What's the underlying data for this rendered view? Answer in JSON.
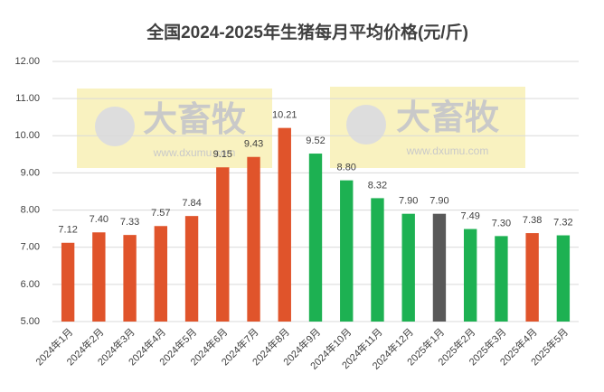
{
  "chart_data": {
    "type": "bar",
    "title": "全国2024-2025年生猪每月平均价格(元/斤)",
    "categories": [
      "2024年1月",
      "2024年2月",
      "2024年3月",
      "2024年4月",
      "2024年5月",
      "2024年6月",
      "2024年7月",
      "2024年8月",
      "2024年9月",
      "2024年10月",
      "2024年11月",
      "2024年12月",
      "2025年1月",
      "2025年2月",
      "2025年3月",
      "2025年4月",
      "2025年5月"
    ],
    "values": [
      7.12,
      7.4,
      7.33,
      7.57,
      7.84,
      9.15,
      9.43,
      10.21,
      9.52,
      8.8,
      8.32,
      7.9,
      7.9,
      7.49,
      7.3,
      7.38,
      7.32
    ],
    "value_labels": [
      "7.12",
      "7.40",
      "7.33",
      "7.57",
      "7.84",
      "9.15",
      "9.43",
      "10.21",
      "9.52",
      "8.80",
      "8.32",
      "7.90",
      "7.90",
      "7.49",
      "7.30",
      "7.38",
      "7.32"
    ],
    "colors": [
      "#e0542b",
      "#e0542b",
      "#e0542b",
      "#e0542b",
      "#e0542b",
      "#e0542b",
      "#e0542b",
      "#e0542b",
      "#1db152",
      "#1db152",
      "#1db152",
      "#1db152",
      "#595959",
      "#1db152",
      "#1db152",
      "#e0542b",
      "#1db152"
    ],
    "ylim": [
      5,
      12
    ],
    "yticks": [
      {
        "value": 5,
        "label": "5.00"
      },
      {
        "value": 6,
        "label": "6.00"
      },
      {
        "value": 7,
        "label": "7.00"
      },
      {
        "value": 8,
        "label": "8.00"
      },
      {
        "value": 9,
        "label": "9.00"
      },
      {
        "value": 10,
        "label": "10.00"
      },
      {
        "value": 11,
        "label": "11.00"
      },
      {
        "value": 12,
        "label": "12.00"
      }
    ],
    "grid": true,
    "watermark": {
      "brand": "大畜牧",
      "url": "www.dxumu.com"
    }
  }
}
